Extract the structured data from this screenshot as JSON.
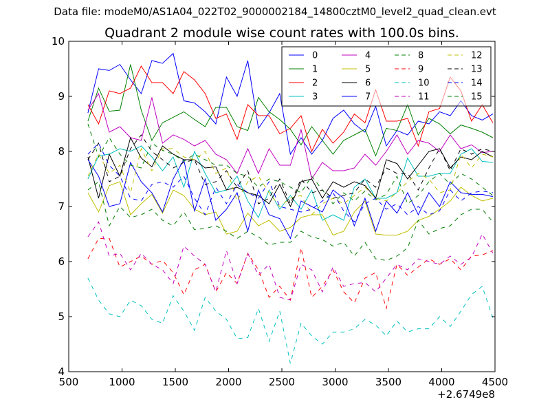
{
  "figure": {
    "suptitle": "Data file: modeM0/AS1A04_022T02_9000002184_14800cztM0_level2_quad_clean.evt"
  },
  "chart_data": {
    "type": "line",
    "title": "Quadrant 2 module wise count rates with 100.0s bins.",
    "xlabel": "",
    "ylabel": "",
    "x_offset_label": "+2.6749e8",
    "xlim": [
      500,
      4500
    ],
    "ylim": [
      4,
      10
    ],
    "xticks": [
      500,
      1000,
      1500,
      2000,
      2500,
      3000,
      3500,
      4000,
      4500
    ],
    "yticks": [
      4,
      5,
      6,
      7,
      8,
      9,
      10
    ],
    "grid": false,
    "legend": {
      "placement": "top-right",
      "columns": 4
    },
    "x": [
      680,
      780,
      880,
      980,
      1080,
      1180,
      1280,
      1380,
      1480,
      1580,
      1680,
      1780,
      1880,
      1980,
      2080,
      2180,
      2280,
      2380,
      2480,
      2580,
      2680,
      2780,
      2880,
      2980,
      3080,
      3180,
      3280,
      3380,
      3480,
      3580,
      3680,
      3780,
      3880,
      3980,
      4080,
      4180,
      4280,
      4380,
      4480
    ],
    "series": [
      {
        "name": "0",
        "color": "#0000ff",
        "dash": "solid",
        "values": [
          8.7,
          9.5,
          9.47,
          9.58,
          9.3,
          9.05,
          9.65,
          9.6,
          9.78,
          8.92,
          8.88,
          8.72,
          8.5,
          9.35,
          9.0,
          9.65,
          8.42,
          8.7,
          9.05,
          7.95,
          8.25,
          7.95,
          8.2,
          8.6,
          8.75,
          8.5,
          8.35,
          8.82,
          8.1,
          8.38,
          8.3,
          8.55,
          8.5,
          8.72,
          8.65,
          8.92,
          8.65,
          8.57,
          8.68
        ]
      },
      {
        "name": "1",
        "color": "#008000",
        "dash": "solid",
        "values": [
          8.55,
          9.15,
          8.73,
          8.75,
          9.58,
          8.75,
          8.2,
          8.52,
          8.62,
          8.72,
          8.58,
          8.45,
          8.8,
          8.8,
          8.45,
          8.38,
          8.98,
          8.72,
          8.58,
          8.4,
          8.12,
          8.45,
          8.2,
          7.95,
          8.2,
          8.3,
          8.4,
          7.92,
          8.42,
          8.38,
          8.85,
          8.3,
          8.6,
          8.5,
          8.32,
          8.48,
          8.42,
          8.35,
          8.25
        ]
      },
      {
        "name": "2",
        "color": "#ff0000",
        "dash": "solid",
        "values": [
          8.85,
          8.5,
          9.1,
          9.05,
          9.15,
          9.55,
          9.25,
          9.25,
          9.05,
          9.45,
          9.3,
          9.05,
          8.6,
          8.68,
          8.22,
          8.85,
          8.65,
          8.65,
          8.32,
          8.42,
          8.65,
          8.0,
          8.4,
          8.15,
          8.35,
          8.68,
          8.52,
          9.12,
          8.55,
          8.55,
          8.6,
          8.1,
          8.72,
          8.78,
          9.35,
          9.1,
          8.55,
          8.85,
          8.52
        ]
      },
      {
        "name": "3",
        "color": "#00bfbf",
        "dash": "solid",
        "values": [
          7.5,
          7.92,
          7.95,
          8.05,
          8.0,
          8.1,
          7.9,
          7.65,
          7.9,
          7.35,
          8.0,
          7.6,
          7.25,
          7.3,
          7.55,
          7.1,
          6.8,
          7.3,
          6.95,
          7.2,
          6.95,
          7.3,
          6.75,
          6.85,
          6.75,
          7.35,
          7.5,
          7.15,
          7.15,
          7.25,
          7.88,
          7.55,
          7.55,
          7.6,
          7.6,
          7.95,
          8.05,
          7.82,
          7.8
        ]
      },
      {
        "name": "4",
        "color": "#bf00bf",
        "dash": "solid",
        "values": [
          8.75,
          9.05,
          8.35,
          8.45,
          8.25,
          8.2,
          8.98,
          8.15,
          8.3,
          8.22,
          8.1,
          8.2,
          7.95,
          7.85,
          7.6,
          8.05,
          7.6,
          8.05,
          7.75,
          7.75,
          8.4,
          7.5,
          7.8,
          7.65,
          7.65,
          7.7,
          7.95,
          7.75,
          8.0,
          8.3,
          7.95,
          8.2,
          8.15,
          8.0,
          8.3,
          8.05,
          8.12,
          7.98,
          8.0
        ]
      },
      {
        "name": "5",
        "color": "#bfbf00",
        "dash": "solid",
        "values": [
          7.25,
          6.9,
          7.38,
          7.45,
          6.85,
          7.05,
          7.22,
          6.88,
          7.3,
          7.2,
          6.95,
          6.85,
          6.9,
          6.5,
          6.55,
          6.88,
          6.65,
          6.75,
          6.55,
          6.62,
          6.8,
          6.85,
          6.85,
          6.48,
          6.55,
          6.9,
          7.1,
          6.5,
          6.48,
          6.48,
          6.55,
          6.75,
          6.82,
          6.95,
          7.1,
          7.35,
          7.2,
          7.1,
          7.15
        ]
      },
      {
        "name": "6",
        "color": "#000000",
        "dash": "solid",
        "values": [
          7.9,
          7.15,
          7.95,
          7.55,
          8.25,
          7.88,
          7.72,
          8.1,
          7.95,
          7.85,
          7.85,
          7.7,
          7.72,
          7.3,
          7.35,
          7.25,
          7.2,
          7.05,
          7.4,
          7.0,
          7.45,
          7.5,
          7.15,
          7.45,
          7.35,
          7.45,
          7.38,
          7.15,
          7.85,
          7.78,
          7.5,
          7.75,
          8.0,
          8.05,
          7.7,
          7.9,
          7.85,
          8.0,
          7.9
        ]
      },
      {
        "name": "7",
        "color": "#0000ff",
        "dash": "solid",
        "values": [
          7.85,
          7.55,
          7.0,
          7.05,
          7.8,
          7.45,
          7.25,
          6.9,
          7.5,
          7.85,
          6.92,
          7.5,
          6.75,
          6.95,
          7.25,
          6.55,
          7.3,
          6.85,
          6.78,
          6.42,
          7.1,
          7.0,
          6.9,
          7.3,
          7.15,
          6.65,
          7.15,
          6.55,
          7.1,
          6.88,
          7.25,
          6.85,
          7.25,
          7.0,
          7.45,
          7.25,
          7.22,
          7.22,
          7.18
        ]
      },
      {
        "name": "8",
        "color": "#008000",
        "dash": "dashed",
        "values": [
          8.5,
          7.9,
          8.25,
          7.95,
          7.75,
          7.7,
          8.15,
          8.02,
          7.95,
          7.82,
          7.95,
          7.85,
          7.75,
          7.75,
          7.6,
          7.55,
          7.35,
          7.5,
          7.45,
          7.35,
          7.25,
          7.55,
          7.3,
          7.05,
          7.25,
          7.1,
          7.28,
          7.12,
          7.22,
          7.55,
          7.05,
          7.2,
          7.45,
          7.6,
          7.4,
          7.6,
          7.5,
          7.35,
          7.2
        ]
      },
      {
        "name": "9",
        "color": "#ff0000",
        "dash": "dashed",
        "values": [
          6.05,
          6.42,
          6.42,
          5.9,
          6.0,
          6.1,
          5.95,
          6.02,
          5.8,
          5.4,
          5.85,
          5.95,
          5.45,
          5.8,
          5.6,
          6.15,
          5.85,
          5.35,
          5.55,
          5.3,
          6.25,
          5.35,
          5.55,
          5.85,
          5.45,
          5.25,
          5.7,
          5.8,
          5.15,
          5.95,
          5.75,
          5.9,
          6.05,
          5.95,
          6.05,
          5.85,
          6.1,
          6.12,
          6.2
        ]
      },
      {
        "name": "10",
        "color": "#00bfbf",
        "dash": "dashed",
        "values": [
          5.7,
          5.3,
          5.05,
          5.0,
          5.3,
          5.2,
          4.95,
          4.88,
          5.38,
          5.1,
          4.75,
          5.35,
          5.1,
          4.95,
          4.6,
          4.62,
          5.15,
          4.55,
          5.1,
          4.15,
          4.88,
          4.65,
          4.5,
          4.72,
          4.72,
          4.78,
          4.95,
          4.85,
          4.65,
          4.92,
          4.72,
          4.78,
          4.78,
          5.0,
          4.82,
          5.1,
          5.4,
          5.55,
          4.98
        ]
      },
      {
        "name": "11",
        "color": "#bf00bf",
        "dash": "dashed",
        "values": [
          6.45,
          6.72,
          6.1,
          6.15,
          5.85,
          6.15,
          5.95,
          5.85,
          5.6,
          6.28,
          6.1,
          5.95,
          5.45,
          6.2,
          5.6,
          6.15,
          5.75,
          5.95,
          5.35,
          5.3,
          5.95,
          5.85,
          5.45,
          5.9,
          5.55,
          5.6,
          5.62,
          5.45,
          5.7,
          5.95,
          5.85,
          6.05,
          6.0,
          5.95,
          6.1,
          5.95,
          6.08,
          6.5,
          6.15
        ]
      },
      {
        "name": "12",
        "color": "#bfbf00",
        "dash": "dashed",
        "values": [
          7.55,
          7.95,
          7.6,
          7.75,
          7.25,
          8.05,
          7.65,
          8.05,
          8.05,
          7.9,
          7.85,
          8.0,
          7.6,
          7.7,
          7.1,
          7.45,
          7.55,
          7.25,
          7.0,
          7.15,
          7.2,
          6.85,
          7.05,
          7.15,
          7.05,
          7.2,
          7.35,
          7.15,
          7.1,
          7.25,
          7.45,
          7.6,
          7.5,
          7.25,
          7.3,
          7.95,
          7.7,
          7.95,
          7.9
        ]
      },
      {
        "name": "13",
        "color": "#000000",
        "dash": "dashed",
        "values": [
          7.85,
          8.15,
          7.45,
          7.55,
          8.05,
          8.3,
          8.0,
          7.85,
          7.7,
          7.8,
          7.85,
          7.4,
          7.45,
          7.65,
          7.35,
          7.65,
          7.05,
          7.15,
          7.5,
          7.05,
          7.5,
          7.25,
          7.3,
          7.15,
          7.2,
          7.25,
          7.5,
          7.35,
          7.7,
          7.6,
          7.6,
          7.3,
          7.7,
          8.05,
          7.65,
          8.05,
          7.95,
          8.05,
          8.0
        ]
      },
      {
        "name": "14",
        "color": "#0000ff",
        "dash": "dashed",
        "values": [
          7.95,
          8.15,
          7.75,
          7.55,
          7.15,
          7.1,
          7.4,
          7.45,
          7.35,
          7.55,
          7.15,
          6.85,
          7.35,
          7.05,
          7.4,
          7.25,
          7.15,
          7.45,
          7.0,
          6.95,
          6.9,
          6.95,
          7.1,
          7.25,
          6.92,
          6.72,
          7.05,
          7.15,
          6.95,
          7.05,
          6.85,
          7.0,
          6.85,
          6.92,
          7.3,
          7.1,
          7.25,
          7.28,
          7.25
        ]
      },
      {
        "name": "15",
        "color": "#008000",
        "dash": "dashed",
        "values": [
          7.3,
          7.45,
          6.65,
          7.0,
          6.8,
          6.85,
          6.95,
          6.75,
          6.65,
          6.9,
          6.58,
          6.6,
          6.65,
          6.55,
          6.42,
          6.55,
          6.45,
          6.3,
          6.35,
          6.35,
          6.55,
          6.45,
          6.4,
          6.28,
          6.35,
          6.1,
          6.35,
          6.05,
          6.02,
          6.1,
          6.25,
          6.75,
          6.5,
          6.6,
          6.65,
          6.85,
          6.95,
          6.95,
          6.72
        ]
      }
    ]
  }
}
